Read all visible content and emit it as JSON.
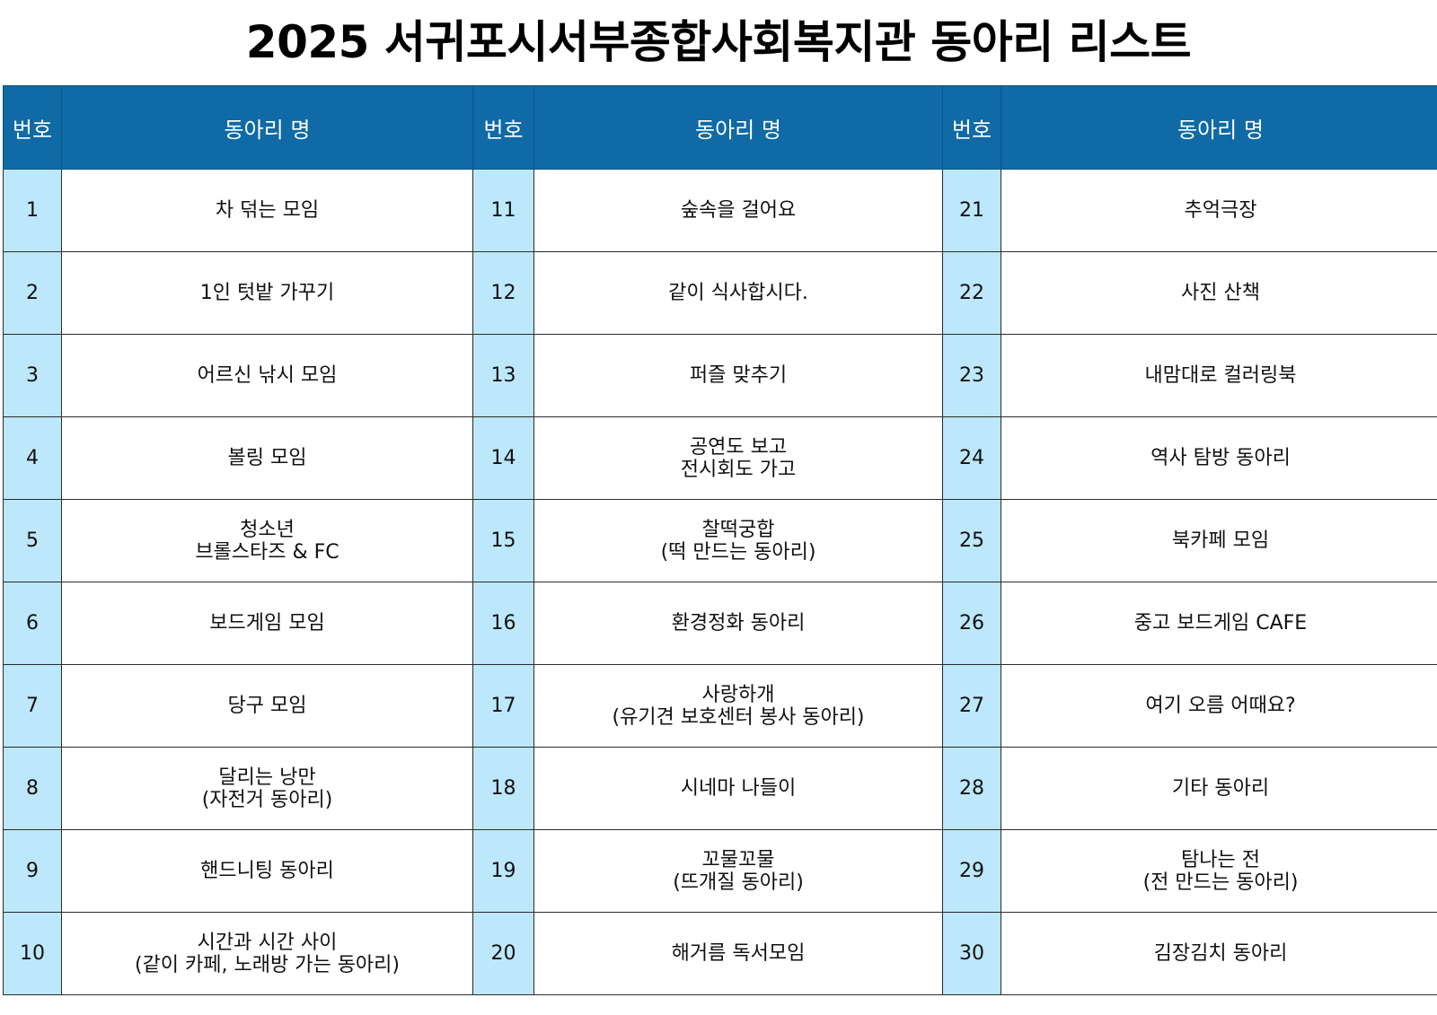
{
  "title": "2025 서귀포시서부종합사회복지관 동아리 리스트",
  "header": {
    "number": "번호",
    "club_name": "동아리 명"
  },
  "rows": [
    [
      {
        "num": "1",
        "name": "차 덖는 모임"
      },
      {
        "num": "11",
        "name": "숲속을 걸어요"
      },
      {
        "num": "21",
        "name": "추억극장"
      }
    ],
    [
      {
        "num": "2",
        "name": "1인 텃밭 가꾸기"
      },
      {
        "num": "12",
        "name": "같이 식사합시다."
      },
      {
        "num": "22",
        "name": "사진 산책"
      }
    ],
    [
      {
        "num": "3",
        "name": "어르신 낚시 모임"
      },
      {
        "num": "13",
        "name": "퍼즐 맞추기"
      },
      {
        "num": "23",
        "name": "내맘대로 컬러링북"
      }
    ],
    [
      {
        "num": "4",
        "name": "볼링 모임"
      },
      {
        "num": "14",
        "name": "공연도 보고\n전시회도 가고"
      },
      {
        "num": "24",
        "name": "역사 탐방 동아리"
      }
    ],
    [
      {
        "num": "5",
        "name": "청소년\n브롤스타즈 & FC"
      },
      {
        "num": "15",
        "name": "찰떡궁합\n(떡 만드는 동아리)"
      },
      {
        "num": "25",
        "name": "북카페 모임"
      }
    ],
    [
      {
        "num": "6",
        "name": "보드게임 모임"
      },
      {
        "num": "16",
        "name": "환경정화 동아리"
      },
      {
        "num": "26",
        "name": "중고 보드게임 CAFE"
      }
    ],
    [
      {
        "num": "7",
        "name": "당구 모임"
      },
      {
        "num": "17",
        "name": "사랑하개\n(유기견 보호센터 봉사 동아리)"
      },
      {
        "num": "27",
        "name": "여기 오름 어때요?"
      }
    ],
    [
      {
        "num": "8",
        "name": "달리는 낭만\n(자전거 동아리)"
      },
      {
        "num": "18",
        "name": "시네마 나들이"
      },
      {
        "num": "28",
        "name": "기타 동아리"
      }
    ],
    [
      {
        "num": "9",
        "name": "핸드니팅 동아리"
      },
      {
        "num": "19",
        "name": "꼬물꼬물\n(뜨개질 동아리)"
      },
      {
        "num": "29",
        "name": "탐나는 전\n(전 만드는 동아리)"
      }
    ],
    [
      {
        "num": "10",
        "name": "시간과 시간 사이\n(같이 카페, 노래방 가는 동아리)"
      },
      {
        "num": "20",
        "name": "해거름 독서모임"
      },
      {
        "num": "30",
        "name": "김장김치 동아리"
      }
    ]
  ],
  "colors": {
    "header_bg": "#0f6aa6",
    "header_text": "#ffffff",
    "number_cell_bg": "#bde7fa"
  }
}
